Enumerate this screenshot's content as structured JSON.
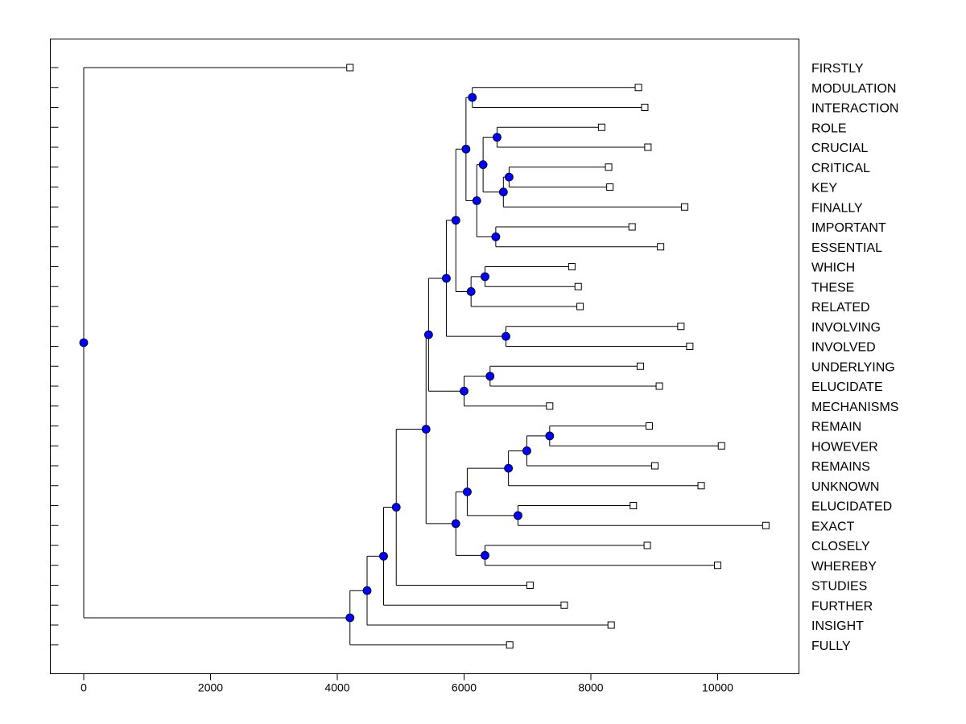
{
  "chart_data": {
    "type": "dendrogram",
    "orientation": "horizontal",
    "x_ticks": [
      0,
      2000,
      4000,
      6000,
      8000,
      10000
    ],
    "xlim": [
      -500,
      11300
    ],
    "leaves": [
      {
        "id": "FIRSTLY",
        "label": "FIRSTLY",
        "x": 4200
      },
      {
        "id": "MODULATION",
        "label": "MODULATION",
        "x": 8750
      },
      {
        "id": "INTERACTION",
        "label": "INTERACTION",
        "x": 8850
      },
      {
        "id": "ROLE",
        "label": "ROLE",
        "x": 8170
      },
      {
        "id": "CRUCIAL",
        "label": "CRUCIAL",
        "x": 8900
      },
      {
        "id": "CRITICAL",
        "label": "CRITICAL",
        "x": 8280
      },
      {
        "id": "KEY",
        "label": "KEY",
        "x": 8300
      },
      {
        "id": "FINALLY",
        "label": "FINALLY",
        "x": 9480
      },
      {
        "id": "IMPORTANT",
        "label": "IMPORTANT",
        "x": 8650
      },
      {
        "id": "ESSENTIAL",
        "label": "ESSENTIAL",
        "x": 9100
      },
      {
        "id": "WHICH",
        "label": "WHICH",
        "x": 7700
      },
      {
        "id": "THESE",
        "label": "THESE",
        "x": 7800
      },
      {
        "id": "RELATED",
        "label": "RELATED",
        "x": 7830
      },
      {
        "id": "INVOLVING",
        "label": "INVOLVING",
        "x": 9420
      },
      {
        "id": "INVOLVED",
        "label": "INVOLVED",
        "x": 9560
      },
      {
        "id": "UNDERLYING",
        "label": "UNDERLYING",
        "x": 8780
      },
      {
        "id": "ELUCIDATE",
        "label": "ELUCIDATE",
        "x": 9080
      },
      {
        "id": "MECHANISMS",
        "label": "MECHANISMS",
        "x": 7350
      },
      {
        "id": "REMAIN",
        "label": "REMAIN",
        "x": 8920
      },
      {
        "id": "HOWEVER",
        "label": "HOWEVER",
        "x": 10060
      },
      {
        "id": "REMAINS",
        "label": "REMAINS",
        "x": 9010
      },
      {
        "id": "UNKNOWN",
        "label": "UNKNOWN",
        "x": 9740
      },
      {
        "id": "ELUCIDATED",
        "label": "ELUCIDATED",
        "x": 8670
      },
      {
        "id": "EXACT",
        "label": "EXACT",
        "x": 10760
      },
      {
        "id": "CLOSELY",
        "label": "CLOSELY",
        "x": 8890
      },
      {
        "id": "WHEREBY",
        "label": "WHEREBY",
        "x": 10000
      },
      {
        "id": "STUDIES",
        "label": "STUDIES",
        "x": 7040
      },
      {
        "id": "FURTHER",
        "label": "FURTHER",
        "x": 7580
      },
      {
        "id": "INSIGHT",
        "label": "INSIGHT",
        "x": 8320
      },
      {
        "id": "FULLY",
        "label": "FULLY",
        "x": 6720
      }
    ],
    "merges": [
      {
        "id": "n1",
        "x": 6130,
        "children": [
          "MODULATION",
          "INTERACTION"
        ]
      },
      {
        "id": "n2",
        "x": 6520,
        "children": [
          "ROLE",
          "CRUCIAL"
        ]
      },
      {
        "id": "n3",
        "x": 6710,
        "children": [
          "CRITICAL",
          "KEY"
        ]
      },
      {
        "id": "n4",
        "x": 6620,
        "children": [
          "n3",
          "FINALLY"
        ]
      },
      {
        "id": "n5",
        "x": 6300,
        "children": [
          "n2",
          "n4"
        ]
      },
      {
        "id": "n6",
        "x": 6500,
        "children": [
          "IMPORTANT",
          "ESSENTIAL"
        ]
      },
      {
        "id": "n7",
        "x": 6200,
        "children": [
          "n5",
          "n6"
        ]
      },
      {
        "id": "n8",
        "x": 6030,
        "children": [
          "n1",
          "n7"
        ]
      },
      {
        "id": "n9",
        "x": 6330,
        "children": [
          "WHICH",
          "THESE"
        ]
      },
      {
        "id": "n10",
        "x": 6110,
        "children": [
          "n9",
          "RELATED"
        ]
      },
      {
        "id": "n11",
        "x": 5870,
        "children": [
          "n8",
          "n10"
        ]
      },
      {
        "id": "n12",
        "x": 6660,
        "children": [
          "INVOLVING",
          "INVOLVED"
        ]
      },
      {
        "id": "n13",
        "x": 5720,
        "children": [
          "n11",
          "n12"
        ]
      },
      {
        "id": "n14",
        "x": 6410,
        "children": [
          "UNDERLYING",
          "ELUCIDATE"
        ]
      },
      {
        "id": "n15",
        "x": 6000,
        "children": [
          "n14",
          "MECHANISMS"
        ]
      },
      {
        "id": "n16",
        "x": 5440,
        "children": [
          "n13",
          "n15"
        ]
      },
      {
        "id": "n17",
        "x": 7350,
        "children": [
          "REMAIN",
          "HOWEVER"
        ]
      },
      {
        "id": "n18",
        "x": 6990,
        "children": [
          "n17",
          "REMAINS"
        ]
      },
      {
        "id": "n19",
        "x": 6700,
        "children": [
          "n18",
          "UNKNOWN"
        ]
      },
      {
        "id": "n20",
        "x": 6850,
        "children": [
          "ELUCIDATED",
          "EXACT"
        ]
      },
      {
        "id": "n21",
        "x": 6050,
        "children": [
          "n19",
          "n20"
        ]
      },
      {
        "id": "n22",
        "x": 6330,
        "children": [
          "CLOSELY",
          "WHEREBY"
        ]
      },
      {
        "id": "n23",
        "x": 5870,
        "children": [
          "n21",
          "n22"
        ]
      },
      {
        "id": "n24",
        "x": 5400,
        "children": [
          "n16",
          "n23"
        ]
      },
      {
        "id": "n25",
        "x": 4930,
        "children": [
          "n24",
          "STUDIES"
        ]
      },
      {
        "id": "n26",
        "x": 4730,
        "children": [
          "n25",
          "FURTHER"
        ]
      },
      {
        "id": "n27",
        "x": 4470,
        "children": [
          "n26",
          "INSIGHT"
        ]
      },
      {
        "id": "n28",
        "x": 4200,
        "children": [
          "n27",
          "FULLY"
        ]
      },
      {
        "id": "n29",
        "x": 0,
        "children": [
          "FIRSTLY",
          "n28"
        ]
      }
    ]
  }
}
